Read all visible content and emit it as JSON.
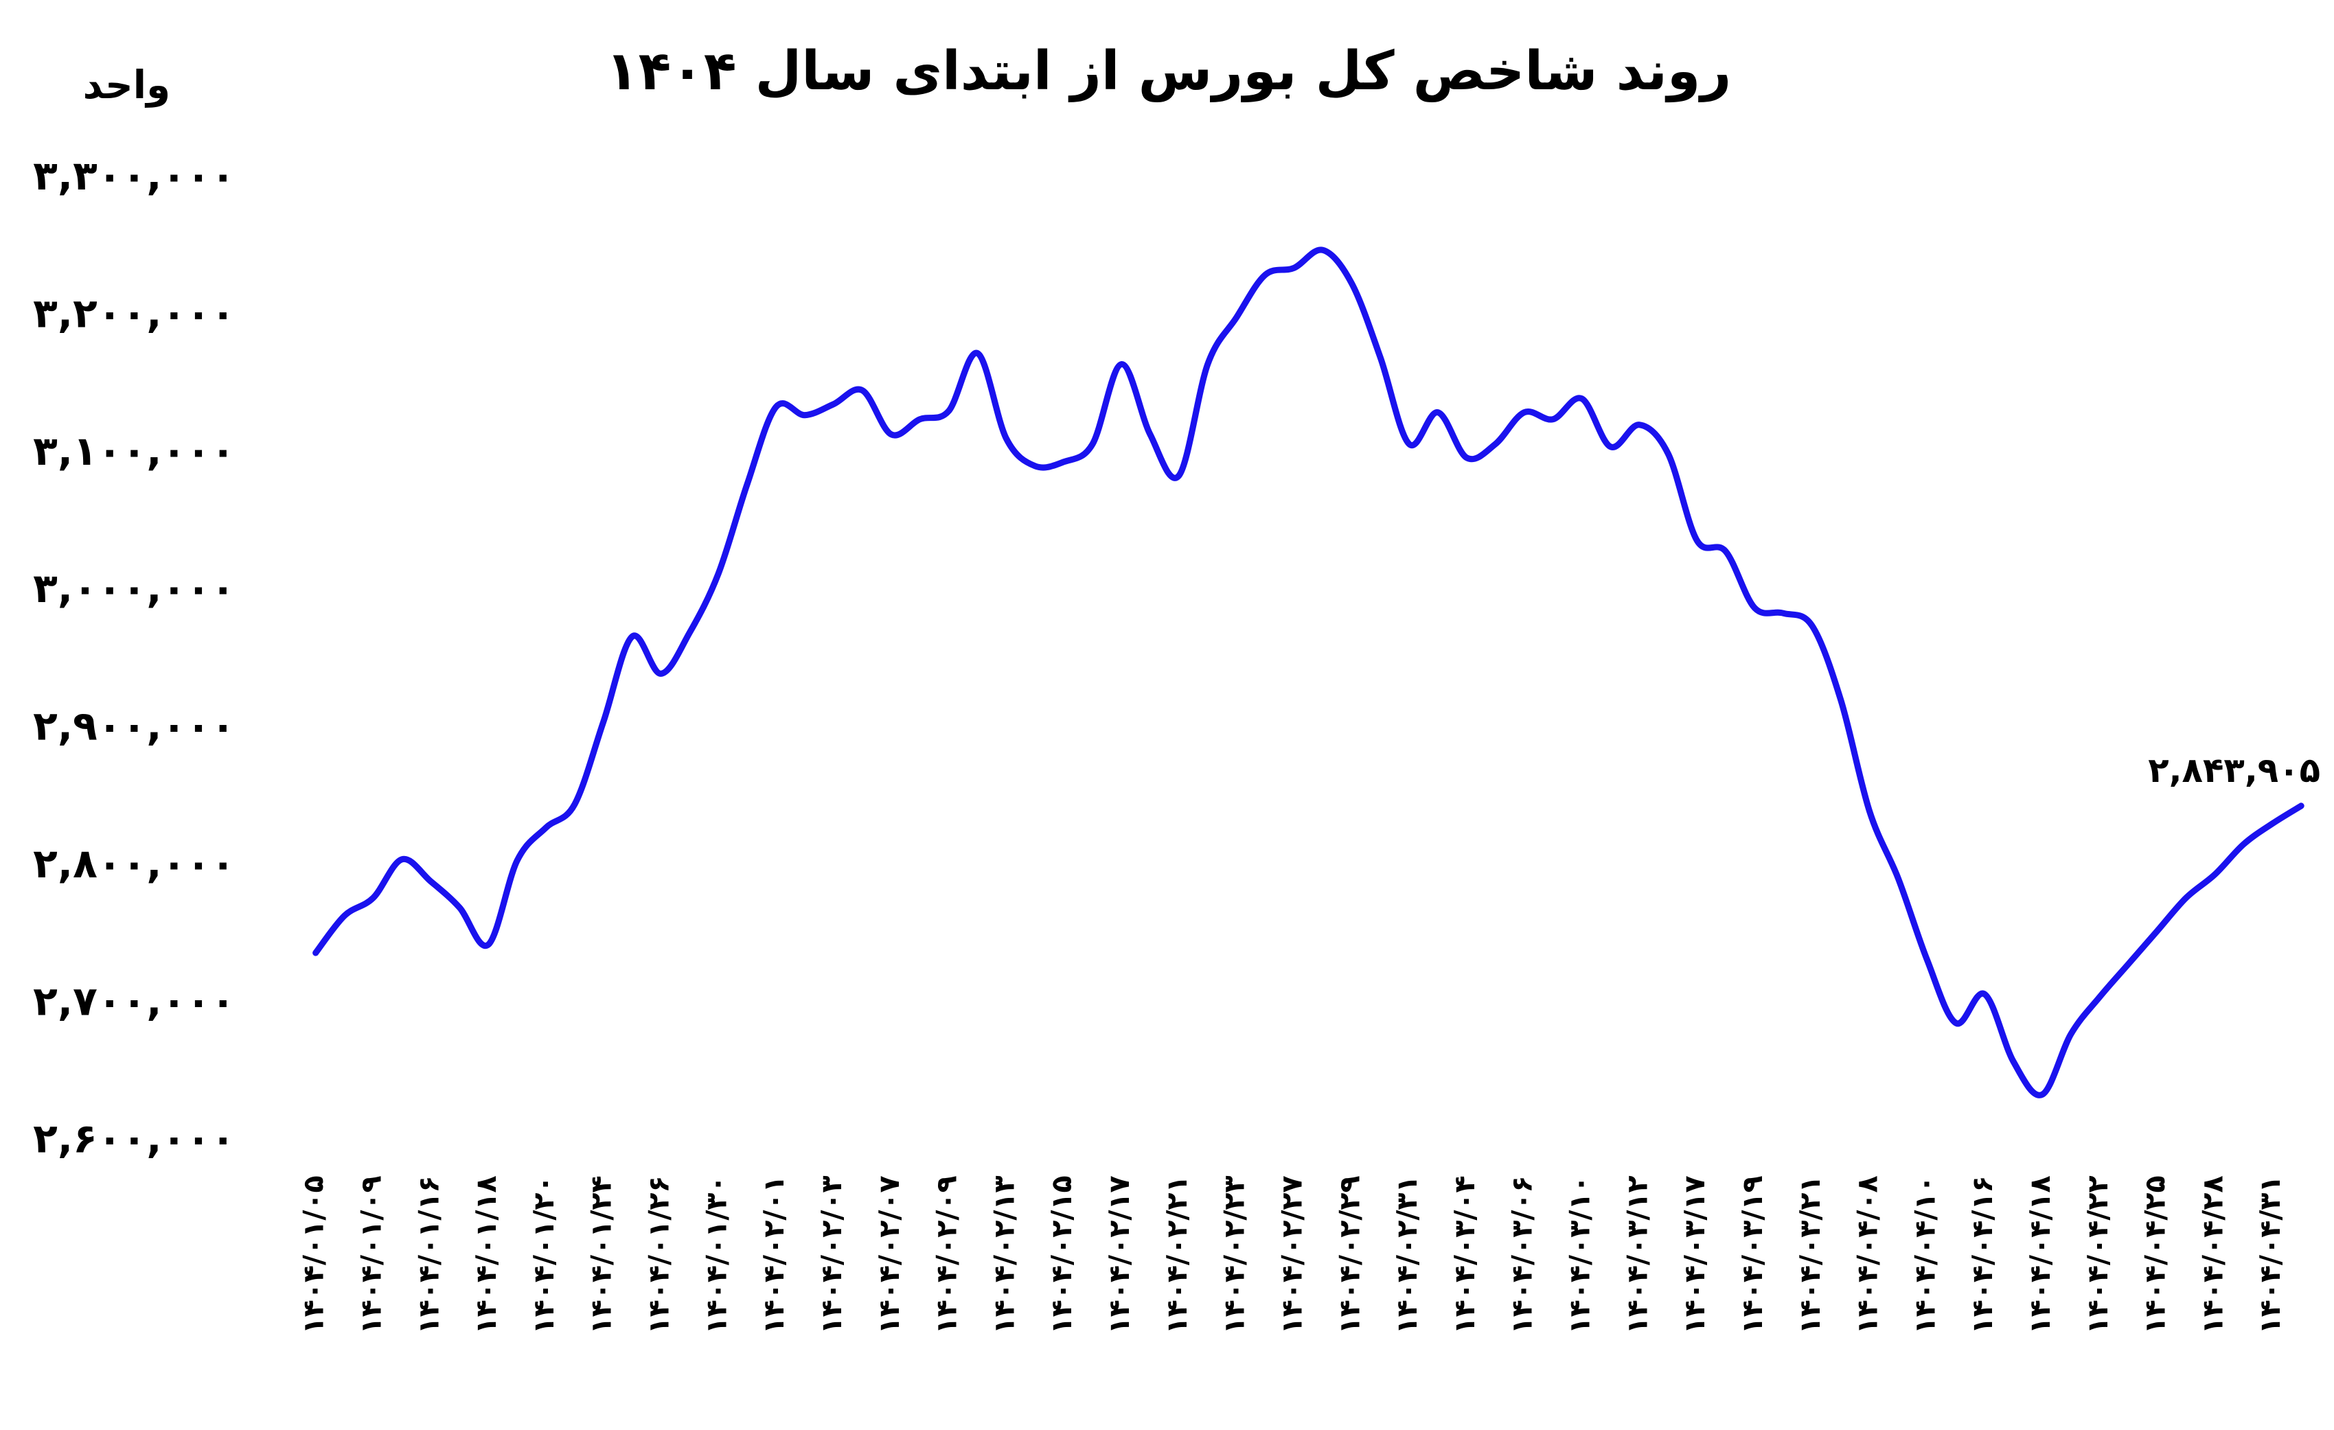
{
  "chart_data": {
    "type": "line",
    "title": "روند شاخص کل بورس از ابتدای سال ۱۴۰۴",
    "y_label": "واحد",
    "categories": [
      "۱۴۰۴/۰۱/۰۵",
      null,
      "۱۴۰۴/۰۱/۰۹",
      null,
      "۱۴۰۴/۰۱/۱۶",
      null,
      "۱۴۰۴/۰۱/۱۸",
      null,
      "۱۴۰۴/۰۱/۲۰",
      null,
      "۱۴۰۴/۰۱/۲۴",
      null,
      "۱۴۰۴/۰۱/۲۶",
      null,
      "۱۴۰۴/۰۱/۳۰",
      null,
      "۱۴۰۴/۰۲/۰۱",
      null,
      "۱۴۰۴/۰۲/۰۳",
      null,
      "۱۴۰۴/۰۲/۰۷",
      null,
      "۱۴۰۴/۰۲/۰۹",
      null,
      "۱۴۰۴/۰۲/۱۳",
      null,
      "۱۴۰۴/۰۲/۱۵",
      null,
      "۱۴۰۴/۰۲/۱۷",
      null,
      "۱۴۰۴/۰۲/۲۱",
      null,
      "۱۴۰۴/۰۲/۲۳",
      null,
      "۱۴۰۴/۰۲/۲۷",
      null,
      "۱۴۰۴/۰۲/۲۹",
      null,
      "۱۴۰۴/۰۲/۳۱",
      null,
      "۱۴۰۴/۰۳/۰۴",
      null,
      "۱۴۰۴/۰۳/۰۶",
      null,
      "۱۴۰۴/۰۳/۱۰",
      null,
      "۱۴۰۴/۰۳/۱۲",
      null,
      "۱۴۰۴/۰۳/۱۷",
      null,
      "۱۴۰۴/۰۳/۱۹",
      null,
      "۱۴۰۴/۰۳/۲۱",
      null,
      "۱۴۰۴/۰۴/۰۸",
      null,
      "۱۴۰۴/۰۴/۱۰",
      null,
      "۱۴۰۴/۰۴/۱۶",
      null,
      "۱۴۰۴/۰۴/۱۸",
      null,
      "۱۴۰۴/۰۴/۲۲",
      null,
      "۱۴۰۴/۰۴/۲۵",
      null,
      "۱۴۰۴/۰۴/۲۸",
      null,
      "۱۴۰۴/۰۴/۳۱",
      null
    ],
    "series": [
      {
        "color": "#1a12ee",
        "values": [
          2737000,
          2764000,
          2777000,
          2805000,
          2789000,
          2770000,
          2743000,
          2804000,
          2828000,
          2845000,
          2905000,
          2967000,
          2940000,
          2970000,
          3013000,
          3078000,
          3134000,
          3128000,
          3136000,
          3146000,
          3114000,
          3125000,
          3131000,
          3173000,
          3111000,
          3091000,
          3094000,
          3107000,
          3165000,
          3114000,
          3084000,
          3165000,
          3199000,
          3230000,
          3235000,
          3248000,
          3224000,
          3170000,
          3107000,
          3130000,
          3097000,
          3107000,
          3130000,
          3125000,
          3140000,
          3105000,
          3121000,
          3100000,
          3037000,
          3029000,
          2988000,
          2984000,
          2975000,
          2921000,
          2840000,
          2791000,
          2732000,
          2686000,
          2707000,
          2658000,
          2634000,
          2678000,
          2705000,
          2729000,
          2753000,
          2777000,
          2794000,
          2816000,
          2831000,
          2843905
        ],
        "value_labels": {
          "69": "۲,۸۴۳,۹۰۵"
        }
      }
    ],
    "ylim": [
      2600000,
      3300000
    ],
    "yticks": [
      {
        "value": 2600000,
        "label": "۲,۶۰۰,۰۰۰"
      },
      {
        "value": 2700000,
        "label": "۲,۷۰۰,۰۰۰"
      },
      {
        "value": 2800000,
        "label": "۲,۸۰۰,۰۰۰"
      },
      {
        "value": 2900000,
        "label": "۲,۹۰۰,۰۰۰"
      },
      {
        "value": 3000000,
        "label": "۳,۰۰۰,۰۰۰"
      },
      {
        "value": 3100000,
        "label": "۳,۱۰۰,۰۰۰"
      },
      {
        "value": 3200000,
        "label": "۳,۲۰۰,۰۰۰"
      },
      {
        "value": 3300000,
        "label": "۳,۳۰۰,۰۰۰"
      }
    ],
    "grid": false
  }
}
